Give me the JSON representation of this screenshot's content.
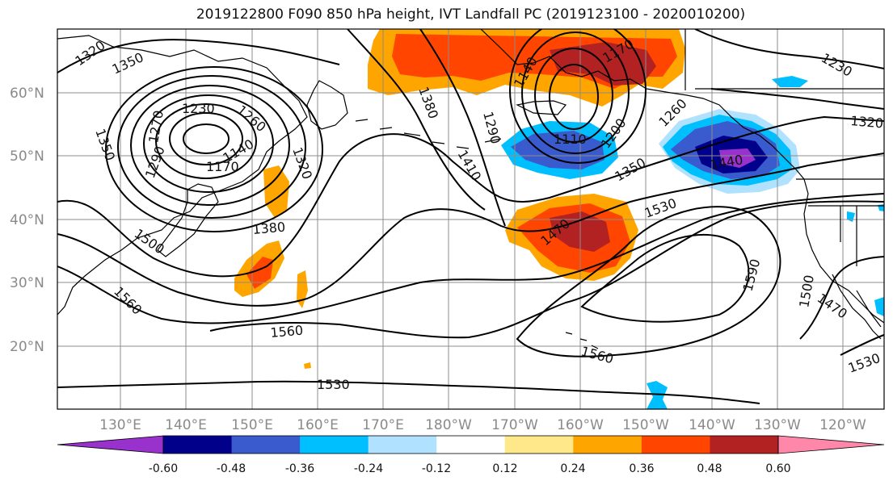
{
  "title": "2019122800 F090 850 hPa height, IVT Landfall PC (2019123100 - 2020010200)",
  "lat_labels": [
    "60°N",
    "50°N",
    "40°N",
    "30°N",
    "20°N"
  ],
  "lon_labels": [
    "130°E",
    "140°E",
    "150°E",
    "160°E",
    "170°E",
    "180°W",
    "170°W",
    "160°W",
    "150°W",
    "140°W",
    "130°W",
    "120°W"
  ],
  "contour_labels": [
    "1320",
    "1350",
    "1230",
    "1260",
    "1170",
    "1140",
    "1290",
    "1320",
    "1350",
    "1380",
    "1500",
    "1560",
    "1560",
    "1530",
    "1380",
    "1410",
    "1290",
    "1110",
    "1200",
    "1260",
    "1350",
    "1440",
    "1140",
    "1170",
    "1230",
    "1320",
    "1470",
    "1530",
    "1590",
    "1500",
    "1470",
    "1560",
    "1530",
    "1270"
  ],
  "colorbar": {
    "tick_labels": [
      "-0.60",
      "-0.48",
      "-0.36",
      "-0.24",
      "-0.12",
      "0.12",
      "0.24",
      "0.36",
      "0.48",
      "0.60"
    ],
    "colors": [
      "#9932cc",
      "#00008b",
      "#3a5bcd",
      "#00bfff",
      "#b0e2ff",
      "#ffffff",
      "#ffe88a",
      "#ffa500",
      "#ff4500",
      "#b22222",
      "#ff88aa"
    ]
  }
}
